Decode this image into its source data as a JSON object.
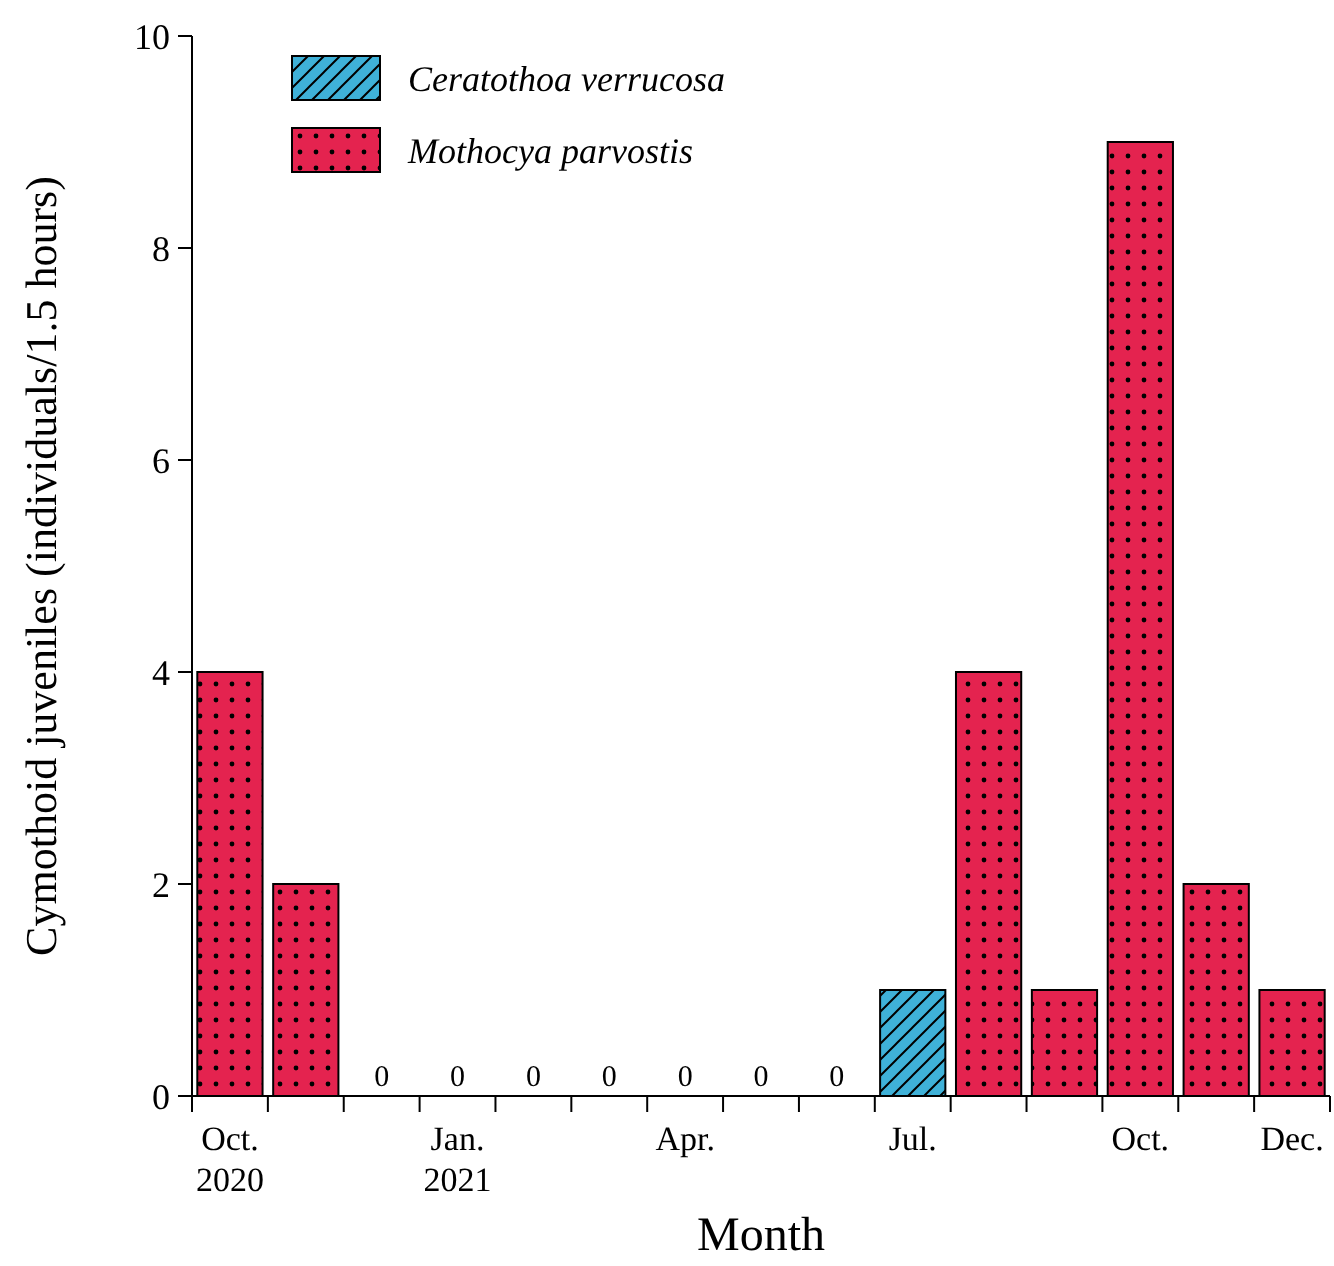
{
  "chart_data": {
    "type": "bar",
    "xlabel": "Month",
    "ylabel": "Cymothoid juveniles (individuals/1.5 hours)",
    "categories": [
      "Oct.\n2020",
      null,
      null,
      "Jan.\n2021",
      null,
      null,
      "Apr.",
      null,
      null,
      "Jul.",
      null,
      null,
      "Oct.",
      null,
      "Dec."
    ],
    "series": [
      {
        "name": "Ceratothoa verrucosa",
        "color": "#3fb1d8",
        "values": [
          null,
          null,
          null,
          null,
          null,
          null,
          null,
          null,
          null,
          1,
          null,
          null,
          null,
          null,
          null
        ]
      },
      {
        "name": "Mothocya parvostis",
        "color": "#e4234f",
        "values": [
          4,
          2,
          0,
          0,
          0,
          0,
          0,
          0,
          0,
          null,
          4,
          1,
          9,
          2,
          1
        ],
        "value_labels": [
          null,
          null,
          "0",
          "0",
          "0",
          "0",
          "0",
          "0",
          "0",
          null,
          null,
          null,
          null,
          null,
          null
        ]
      }
    ],
    "ylim": [
      0,
      10
    ],
    "yticks": [
      0,
      2,
      4,
      6,
      8,
      10
    ],
    "grid": false,
    "legend": "top left"
  }
}
